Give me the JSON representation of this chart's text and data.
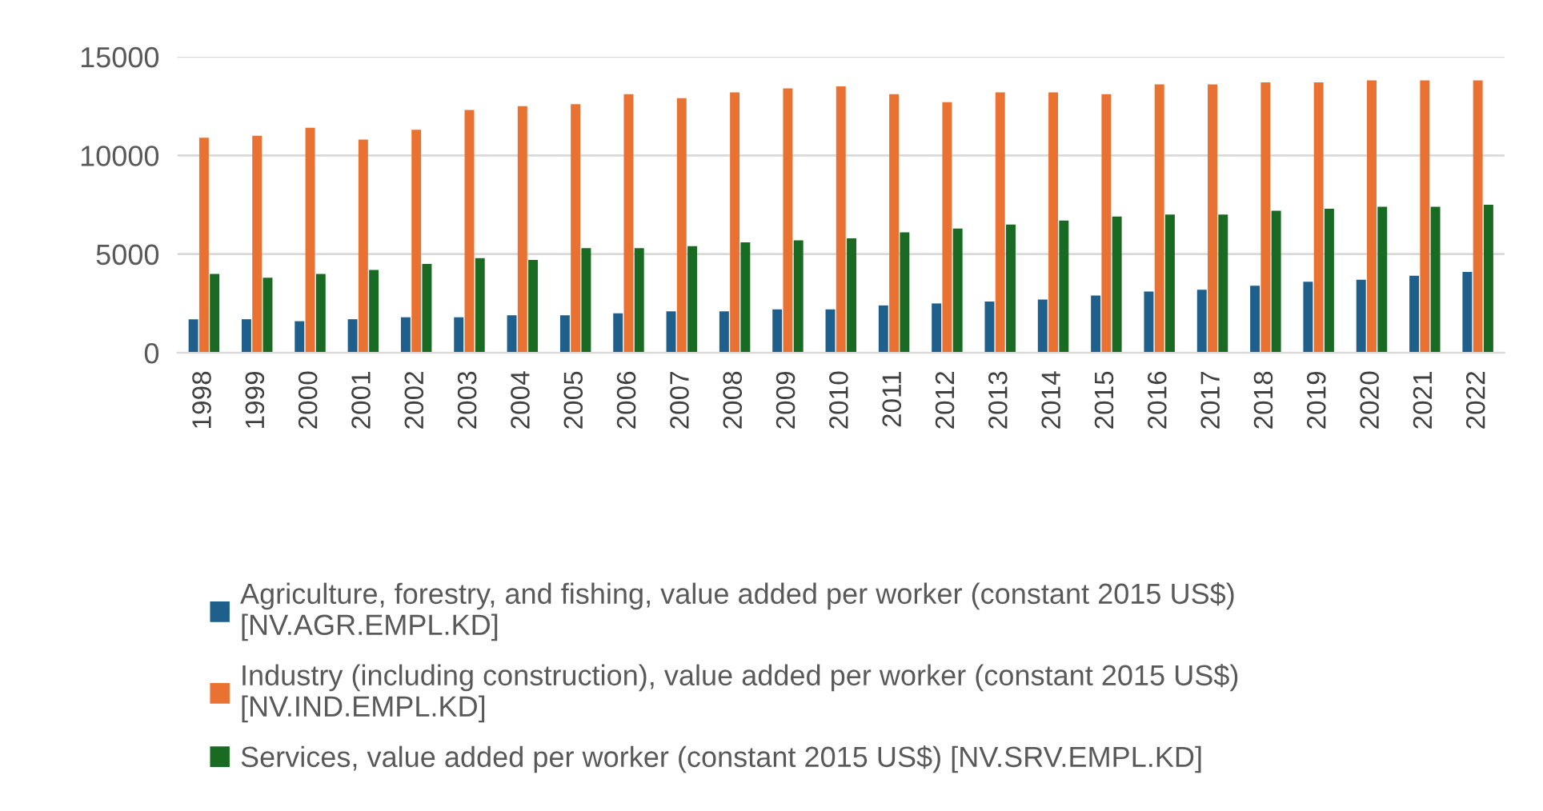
{
  "chart_data": {
    "type": "bar",
    "categories": [
      "1998",
      "1999",
      "2000",
      "2001",
      "2002",
      "2003",
      "2004",
      "2005",
      "2006",
      "2007",
      "2008",
      "2009",
      "2010",
      "2011",
      "2012",
      "2013",
      "2014",
      "2015",
      "2016",
      "2017",
      "2018",
      "2019",
      "2020",
      "2021",
      "2022"
    ],
    "series": [
      {
        "name": "Agriculture, forestry, and fishing, value added per worker (constant 2015 US$)\n[NV.AGR.EMPL.KD]",
        "color": "#1f5f8b",
        "values": [
          1700,
          1700,
          1600,
          1700,
          1800,
          1800,
          1900,
          1900,
          2000,
          2100,
          2100,
          2200,
          2200,
          2400,
          2500,
          2600,
          2700,
          2900,
          3100,
          3200,
          3400,
          3600,
          3700,
          3900,
          4100
        ]
      },
      {
        "name": "Industry (including construction), value added per worker (constant 2015 US$)\n[NV.IND.EMPL.KD]",
        "color": "#e97132",
        "values": [
          10900,
          11000,
          11400,
          10800,
          11300,
          12300,
          12500,
          12600,
          13100,
          12900,
          13200,
          13400,
          13500,
          13100,
          12700,
          13200,
          13200,
          13100,
          13600,
          13600,
          13700,
          13700,
          13800,
          13800,
          13800
        ]
      },
      {
        "name": "Services, value added per worker (constant 2015 US$) [NV.SRV.EMPL.KD]",
        "color": "#196b24",
        "values": [
          4000,
          3800,
          4000,
          4200,
          4500,
          4800,
          4700,
          5300,
          5300,
          5400,
          5600,
          5700,
          5800,
          6100,
          6300,
          6500,
          6700,
          6900,
          7000,
          7000,
          7200,
          7300,
          7400,
          7400,
          7500
        ]
      }
    ],
    "ylim": [
      0,
      15000
    ],
    "yticks": [
      0,
      5000,
      10000,
      15000
    ],
    "grid": "y",
    "legend": "bottom"
  }
}
